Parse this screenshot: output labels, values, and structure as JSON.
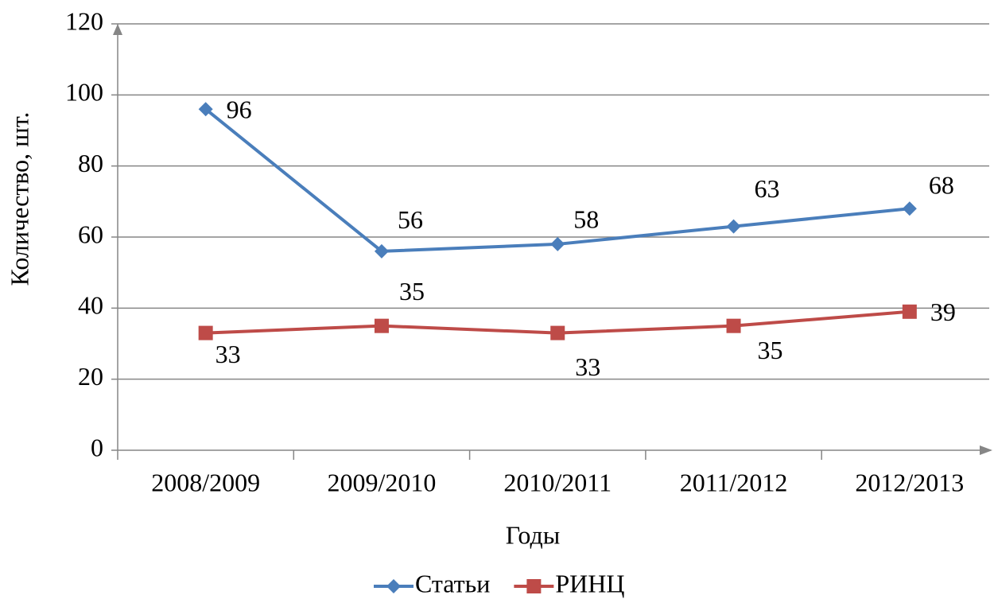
{
  "chart_data": {
    "type": "line",
    "categories": [
      "2008/2009",
      "2009/2010",
      "2010/2011",
      "2011/2012",
      "2012/2013"
    ],
    "series": [
      {
        "name": "Статьи",
        "color": "#4a7ebb",
        "values": [
          96,
          56,
          58,
          63,
          68
        ]
      },
      {
        "name": "РИНЦ",
        "color": "#be4b48",
        "values": [
          33,
          35,
          33,
          35,
          39
        ]
      }
    ],
    "ylim": [
      0,
      120
    ],
    "yticks": [
      0,
      20,
      40,
      60,
      80,
      100,
      120
    ],
    "y_label": "Количество, шт.",
    "x_label": "Годы",
    "grid": true,
    "legend": "bottom"
  }
}
